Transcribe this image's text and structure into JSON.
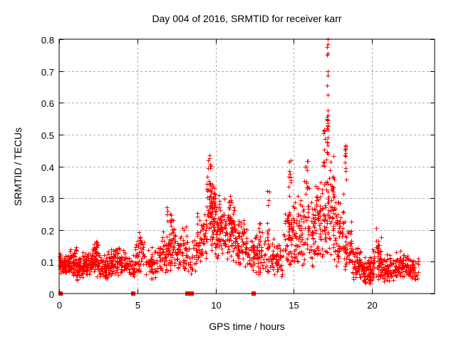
{
  "window": {
    "background": "#ffffff"
  },
  "chart_data": {
    "type": "scatter",
    "title": "Day 004 of 2016, SRMTID for receiver karr",
    "xlabel": "GPS time / hours",
    "ylabel": "SRMTID / TECUs",
    "xlim": [
      0,
      24
    ],
    "ylim": [
      0,
      0.8
    ],
    "x_ticks": [
      0,
      5,
      10,
      15,
      20
    ],
    "y_ticks": [
      0,
      0.1,
      0.2,
      0.3,
      0.4,
      0.5,
      0.6,
      0.7,
      0.8
    ],
    "grid": {
      "visible": true,
      "style": "dashed",
      "color": "#aaaaaa"
    },
    "marker": {
      "shape": "plus",
      "size": 7,
      "color": "#ff0000"
    },
    "legend": "none",
    "seed": 20160104,
    "note_zero_clusters_hours": [
      0.1,
      4.72,
      8.22,
      8.45,
      12.45
    ],
    "zero_clusters": [
      {
        "h": 0.1
      },
      {
        "h": 4.72
      },
      {
        "h": 8.22
      },
      {
        "h": 8.45
      },
      {
        "h": 12.45
      }
    ],
    "bands": [
      {
        "h0": 0.0,
        "h1": 0.7,
        "n": 90,
        "lo": 0.055,
        "hi": 0.135
      },
      {
        "h0": 0.7,
        "h1": 1.1,
        "n": 50,
        "lo": 0.05,
        "hi": 0.155
      },
      {
        "h0": 1.1,
        "h1": 1.5,
        "n": 45,
        "lo": 0.04,
        "hi": 0.12
      },
      {
        "h0": 1.5,
        "h1": 2.1,
        "n": 70,
        "lo": 0.05,
        "hi": 0.14
      },
      {
        "h0": 2.1,
        "h1": 2.5,
        "n": 55,
        "lo": 0.05,
        "hi": 0.165
      },
      {
        "h0": 2.5,
        "h1": 3.1,
        "n": 65,
        "lo": 0.045,
        "hi": 0.13
      },
      {
        "h0": 3.1,
        "h1": 3.7,
        "n": 60,
        "lo": 0.05,
        "hi": 0.145
      },
      {
        "h0": 3.7,
        "h1": 4.3,
        "n": 55,
        "lo": 0.05,
        "hi": 0.15
      },
      {
        "h0": 4.3,
        "h1": 4.85,
        "n": 32,
        "lo": 0.05,
        "hi": 0.13
      },
      {
        "h0": 4.85,
        "h1": 5.5,
        "n": 45,
        "lo": 0.06,
        "hi": 0.19
      },
      {
        "h0": 5.5,
        "h1": 6.3,
        "n": 50,
        "lo": 0.045,
        "hi": 0.15
      },
      {
        "h0": 6.3,
        "h1": 7.0,
        "n": 55,
        "lo": 0.06,
        "hi": 0.21
      },
      {
        "h0": 7.0,
        "h1": 7.5,
        "n": 48,
        "lo": 0.07,
        "hi": 0.25
      },
      {
        "h0": 7.5,
        "h1": 8.2,
        "n": 55,
        "lo": 0.05,
        "hi": 0.23
      },
      {
        "h0": 8.2,
        "h1": 8.8,
        "n": 30,
        "lo": 0.05,
        "hi": 0.18
      },
      {
        "h0": 8.8,
        "h1": 9.4,
        "n": 55,
        "lo": 0.08,
        "hi": 0.28
      },
      {
        "h0": 9.4,
        "h1": 10.0,
        "n": 80,
        "lo": 0.12,
        "hi": 0.38
      },
      {
        "h0": 10.0,
        "h1": 10.6,
        "n": 70,
        "lo": 0.1,
        "hi": 0.33
      },
      {
        "h0": 10.6,
        "h1": 11.2,
        "n": 65,
        "lo": 0.1,
        "hi": 0.31
      },
      {
        "h0": 11.2,
        "h1": 12.0,
        "n": 70,
        "lo": 0.08,
        "hi": 0.26
      },
      {
        "h0": 12.0,
        "h1": 12.7,
        "n": 50,
        "lo": 0.06,
        "hi": 0.2
      },
      {
        "h0": 12.7,
        "h1": 13.5,
        "n": 55,
        "lo": 0.05,
        "hi": 0.24
      },
      {
        "h0": 13.5,
        "h1": 14.3,
        "n": 55,
        "lo": 0.05,
        "hi": 0.18
      },
      {
        "h0": 14.3,
        "h1": 15.0,
        "n": 60,
        "lo": 0.07,
        "hi": 0.3
      },
      {
        "h0": 15.0,
        "h1": 15.6,
        "n": 60,
        "lo": 0.08,
        "hi": 0.33
      },
      {
        "h0": 15.6,
        "h1": 16.3,
        "n": 60,
        "lo": 0.08,
        "hi": 0.38
      },
      {
        "h0": 16.3,
        "h1": 17.0,
        "n": 70,
        "lo": 0.1,
        "hi": 0.4
      },
      {
        "h0": 17.0,
        "h1": 17.6,
        "n": 70,
        "lo": 0.1,
        "hi": 0.44
      },
      {
        "h0": 17.6,
        "h1": 18.2,
        "n": 55,
        "lo": 0.07,
        "hi": 0.33
      },
      {
        "h0": 18.2,
        "h1": 18.7,
        "n": 45,
        "lo": 0.06,
        "hi": 0.25
      },
      {
        "h0": 18.7,
        "h1": 19.3,
        "n": 60,
        "lo": 0.04,
        "hi": 0.16
      },
      {
        "h0": 19.3,
        "h1": 20.0,
        "n": 70,
        "lo": 0.03,
        "hi": 0.12
      },
      {
        "h0": 20.0,
        "h1": 20.6,
        "n": 60,
        "lo": 0.03,
        "hi": 0.18
      },
      {
        "h0": 20.6,
        "h1": 21.4,
        "n": 70,
        "lo": 0.03,
        "hi": 0.13
      },
      {
        "h0": 21.4,
        "h1": 22.2,
        "n": 70,
        "lo": 0.04,
        "hi": 0.14
      },
      {
        "h0": 22.2,
        "h1": 22.95,
        "n": 65,
        "lo": 0.04,
        "hi": 0.13
      }
    ],
    "spikes": [
      {
        "h": 2.3,
        "dh": 0.1,
        "n": 6,
        "lo": 0.13,
        "hi": 0.17
      },
      {
        "h": 5.15,
        "dh": 0.08,
        "n": 6,
        "lo": 0.12,
        "hi": 0.2
      },
      {
        "h": 6.9,
        "dh": 0.05,
        "n": 4,
        "lo": 0.22,
        "hi": 0.275
      },
      {
        "h": 7.15,
        "dh": 0.07,
        "n": 6,
        "lo": 0.19,
        "hi": 0.25
      },
      {
        "h": 9.62,
        "dh": 0.1,
        "n": 16,
        "lo": 0.25,
        "hi": 0.42
      },
      {
        "h": 9.78,
        "dh": 0.15,
        "n": 12,
        "lo": 0.2,
        "hi": 0.35
      },
      {
        "h": 10.9,
        "dh": 0.12,
        "n": 10,
        "lo": 0.22,
        "hi": 0.31
      },
      {
        "h": 13.38,
        "dh": 0.08,
        "n": 6,
        "lo": 0.2,
        "hi": 0.33
      },
      {
        "h": 14.75,
        "dh": 0.1,
        "n": 10,
        "lo": 0.25,
        "hi": 0.42
      },
      {
        "h": 15.8,
        "dh": 0.1,
        "n": 8,
        "lo": 0.33,
        "hi": 0.45
      },
      {
        "h": 16.9,
        "dh": 0.08,
        "n": 8,
        "lo": 0.4,
        "hi": 0.52
      },
      {
        "h": 17.15,
        "dh": 0.06,
        "n": 10,
        "lo": 0.42,
        "hi": 0.6
      },
      {
        "h": 18.3,
        "dh": 0.07,
        "n": 10,
        "lo": 0.34,
        "hi": 0.47
      },
      {
        "h": 20.35,
        "dh": 0.08,
        "n": 8,
        "lo": 0.12,
        "hi": 0.22
      }
    ],
    "points_explicit": [
      [
        17.15,
        0.8
      ],
      [
        17.16,
        0.785
      ],
      [
        17.14,
        0.775
      ],
      [
        17.17,
        0.755
      ],
      [
        17.13,
        0.75
      ],
      [
        17.15,
        0.7
      ],
      [
        17.16,
        0.685
      ],
      [
        17.14,
        0.655
      ],
      [
        17.15,
        0.625
      ],
      [
        17.17,
        0.56
      ],
      [
        17.13,
        0.555
      ],
      [
        17.16,
        0.545
      ],
      [
        17.12,
        0.52
      ],
      [
        17.18,
        0.515
      ],
      [
        17.15,
        0.49
      ],
      [
        17.14,
        0.475
      ],
      [
        17.17,
        0.465
      ],
      [
        17.13,
        0.445
      ],
      [
        17.16,
        0.44
      ],
      [
        9.6,
        0.435
      ],
      [
        9.62,
        0.425
      ],
      [
        9.64,
        0.405
      ],
      [
        14.72,
        0.415
      ],
      [
        16.92,
        0.515
      ],
      [
        16.88,
        0.505
      ],
      [
        18.3,
        0.465
      ],
      [
        18.33,
        0.455
      ]
    ]
  }
}
